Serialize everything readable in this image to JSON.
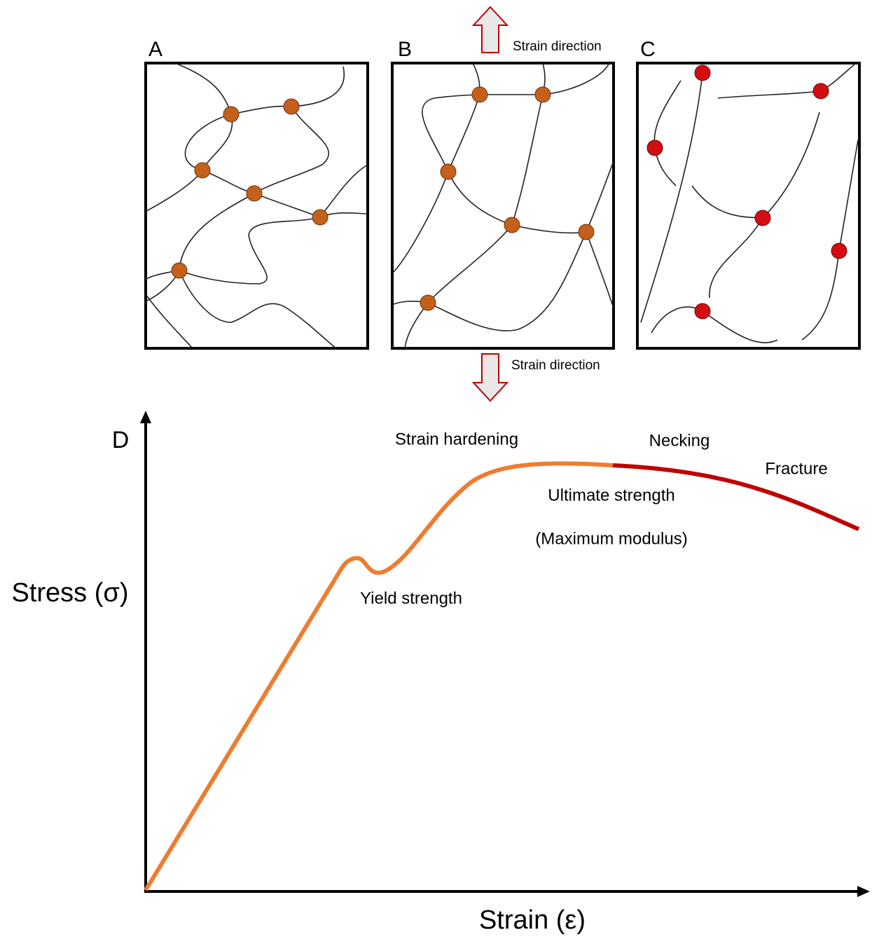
{
  "panels": [
    {
      "label": "A"
    },
    {
      "label": "B"
    },
    {
      "label": "C"
    }
  ],
  "strain_direction": {
    "top": "Strain direction",
    "bottom": "Strain direction"
  },
  "graph": {
    "label": "D",
    "y_axis": "Stress (σ)",
    "x_axis": "Strain (ε)",
    "annotations": [
      "Strain hardening",
      "Necking",
      "Fracture",
      "Ultimate strength",
      "(Maximum modulus)",
      "Yield strength"
    ]
  }
}
